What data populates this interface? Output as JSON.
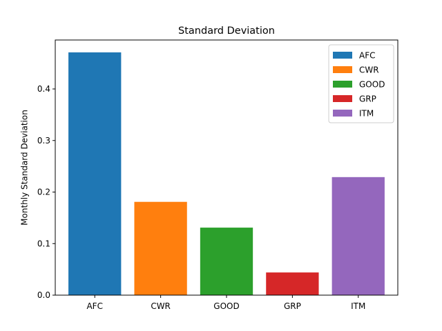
{
  "chart_data": {
    "type": "bar",
    "title": "Standard Deviation",
    "xlabel": "",
    "ylabel": "Monthly Standard Deviation",
    "categories": [
      "AFC",
      "CWR",
      "GOOD",
      "GRP",
      "ITM"
    ],
    "values": [
      0.471,
      0.181,
      0.131,
      0.044,
      0.229
    ],
    "colors": [
      "#1f77b4",
      "#ff7f0e",
      "#2ca02c",
      "#d62728",
      "#9467bd"
    ],
    "ylim": [
      0,
      0.495
    ],
    "yticks": [
      0.0,
      0.1,
      0.2,
      0.3,
      0.4
    ],
    "ytick_labels": [
      "0.0",
      "0.1",
      "0.2",
      "0.3",
      "0.4"
    ],
    "legend": {
      "position": "top-right",
      "entries": [
        "AFC",
        "CWR",
        "GOOD",
        "GRP",
        "ITM"
      ]
    },
    "grid": false
  }
}
